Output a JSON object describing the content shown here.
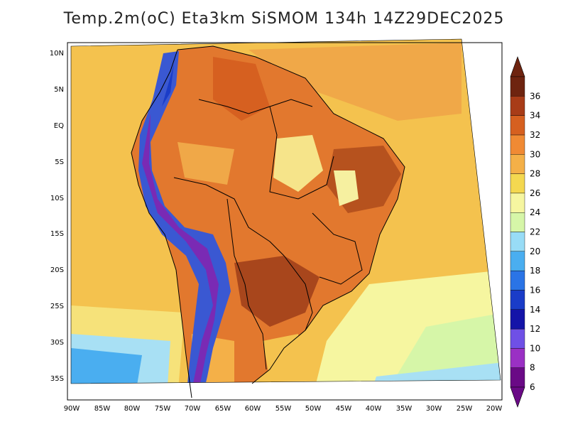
{
  "title": "Temp.2m(oC) Eta3km SiSMOM 134h 14Z29DEC2025",
  "map": {
    "variable": "2 m air temperature",
    "units": "oC",
    "region": "South America",
    "y_ticks": [
      "10N",
      "5N",
      "EQ",
      "5S",
      "10S",
      "15S",
      "20S",
      "25S",
      "30S",
      "35S"
    ],
    "x_ticks": [
      "90W",
      "85W",
      "80W",
      "75W",
      "70W",
      "65W",
      "60W",
      "55W",
      "50W",
      "45W",
      "40W",
      "35W",
      "30W",
      "25W",
      "20W"
    ]
  },
  "colorbar": {
    "labels": [
      "6",
      "8",
      "10",
      "12",
      "14",
      "16",
      "18",
      "20",
      "22",
      "24",
      "26",
      "28",
      "30",
      "32",
      "34",
      "36"
    ],
    "colors": [
      "#6a0a86",
      "#9a30c4",
      "#6f50e6",
      "#1414a8",
      "#1a3cc8",
      "#2a74e6",
      "#4aaef0",
      "#98dcf6",
      "#d6f6a8",
      "#f6f6a0",
      "#f4d850",
      "#f4b048",
      "#f08a34",
      "#d66020",
      "#a83c18",
      "#6e2410"
    ]
  },
  "colors": {
    "ocean_warm": "#f4c24e",
    "land_hot": "#e2782e",
    "andes_cold": "#3a58d2",
    "cool_south": "#a8e0f4"
  }
}
